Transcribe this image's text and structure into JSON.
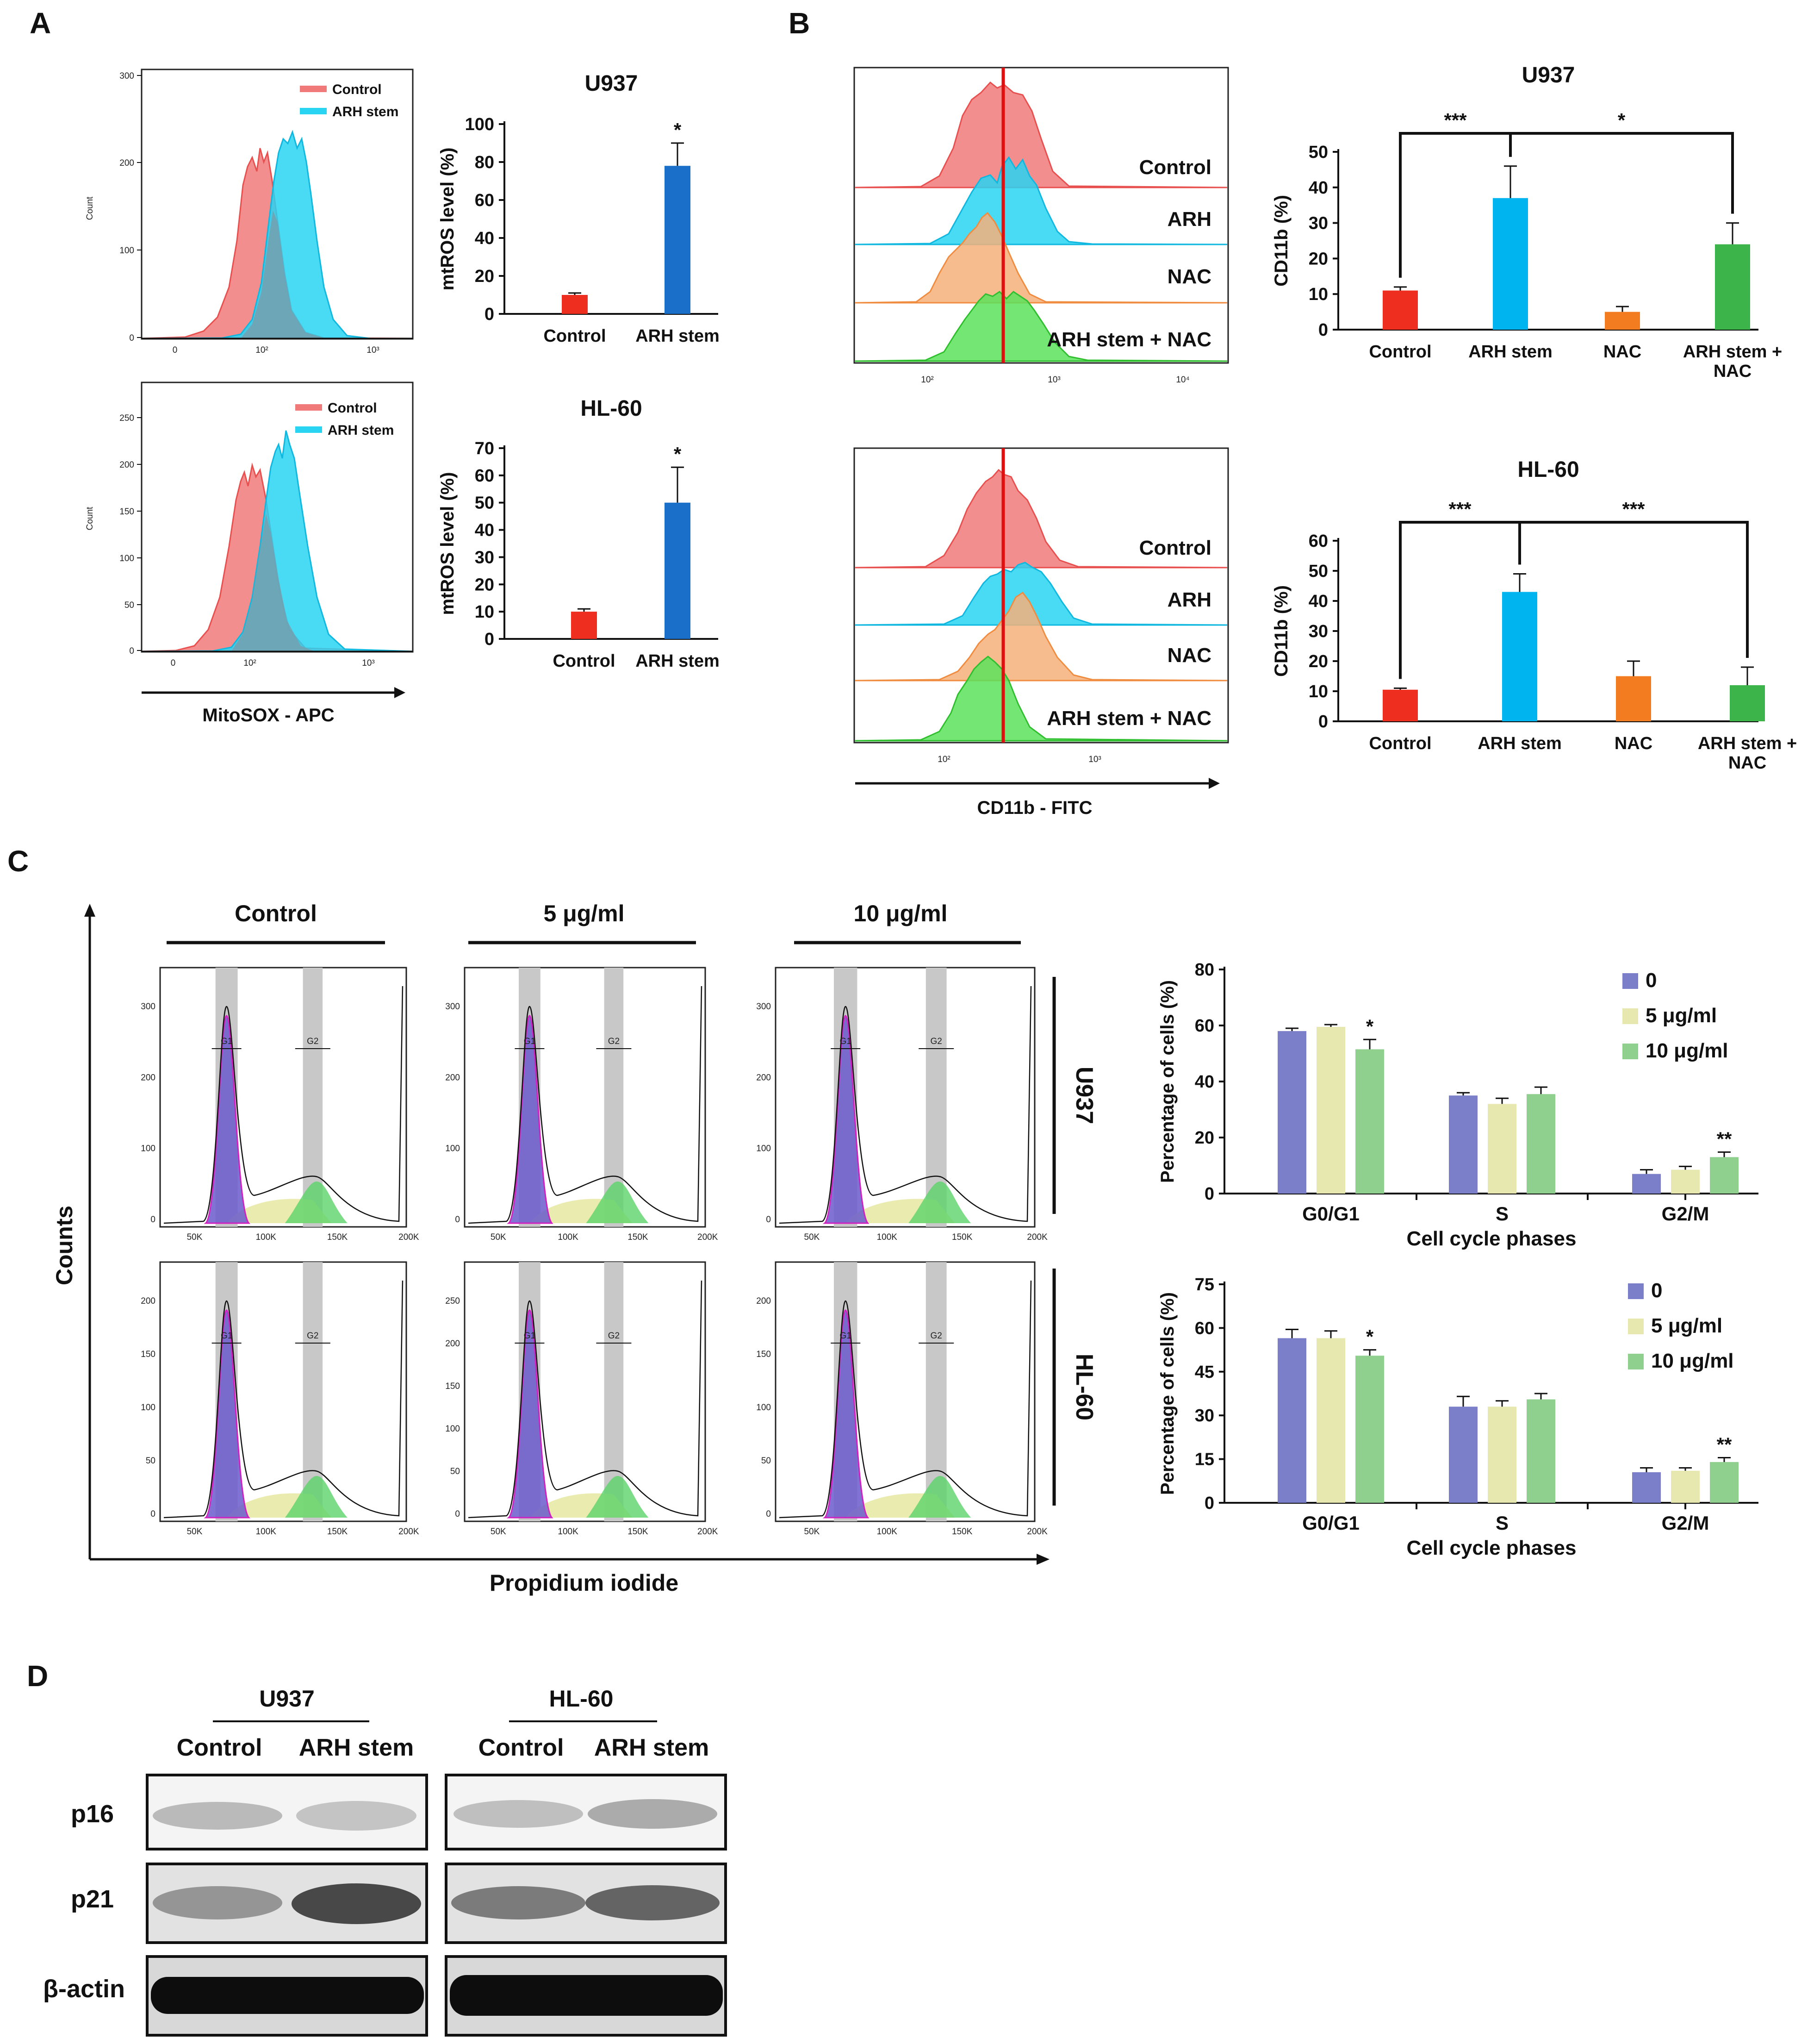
{
  "panels": {
    "A": {
      "label": "A",
      "flow_legend": [
        "Control",
        "ARH stem"
      ],
      "flow_ylabel": "Count",
      "flow_u937_yticks": [
        "300",
        "200",
        "100",
        "0"
      ],
      "flow_hl60_yticks": [
        "250",
        "200",
        "150",
        "100",
        "50",
        "0"
      ],
      "flow_xticks": [
        "0",
        "10²",
        "10³"
      ],
      "xaxis_label": "MitoSOX - APC"
    },
    "B": {
      "label": "B",
      "hist_labels": [
        "Control",
        "ARH",
        "NAC",
        "ARH stem + NAC"
      ],
      "u937_xticks": [
        "10²",
        "10³",
        "10⁴"
      ],
      "hl60_xticks": [
        "10²",
        "10³"
      ],
      "xaxis_label": "CD11b - FITC"
    },
    "C": {
      "label": "C",
      "conditions": [
        "Control",
        "5 μg/ml",
        "10 μg/ml"
      ],
      "cell_lines": [
        "U937",
        "HL-60"
      ],
      "gates": [
        "G1",
        "G2"
      ],
      "xticks": [
        "50K",
        "100K",
        "150K",
        "200K"
      ],
      "u937_yticks": [
        "300",
        "200",
        "100",
        "0"
      ],
      "hl60_yticks": [
        "200",
        "150",
        "100",
        "50",
        "0"
      ],
      "hl60_yticks_alt": [
        "250",
        "200",
        "150",
        "100",
        "50",
        "0"
      ],
      "yaxis_label": "Counts",
      "xaxis_label": "Propidium iodide"
    },
    "D": {
      "label": "D",
      "groups": [
        "U937",
        "HL-60"
      ],
      "lanes": [
        "Control",
        "ARH stem",
        "Control",
        "ARH stem"
      ],
      "proteins": [
        "p16",
        "p21",
        "β-actin"
      ]
    }
  },
  "colors": {
    "red": "#ee2e1f",
    "blue": "#1a6fc9",
    "cyan": "#00b5ef",
    "orange": "#f47c20",
    "green": "#3cb44a",
    "purple": "#7b7fc9",
    "pale": "#e6e8b0",
    "lightgreen": "#8fd08f",
    "hist_red": "#f07a7a",
    "hist_cyan": "#29d3f2",
    "hist_orange": "#f6b07a",
    "hist_green": "#5ce25c"
  },
  "chart_data": [
    {
      "id": "A-U937",
      "type": "bar",
      "title": "U937",
      "categories": [
        "Control",
        "ARH stem"
      ],
      "values": [
        10,
        78
      ],
      "errors": [
        1,
        12
      ],
      "ylabel": "mtROS level (%)",
      "ylim": [
        0,
        100
      ],
      "yticks": [
        "0",
        "20",
        "40",
        "60",
        "80",
        "100"
      ],
      "annotations": [
        "",
        "*"
      ]
    },
    {
      "id": "A-HL60",
      "type": "bar",
      "title": "HL-60",
      "categories": [
        "Control",
        "ARH stem"
      ],
      "values": [
        10,
        50
      ],
      "errors": [
        1,
        13
      ],
      "ylabel": "mtROS level (%)",
      "ylim": [
        0,
        70
      ],
      "yticks": [
        "0",
        "10",
        "20",
        "30",
        "40",
        "50",
        "60",
        "70"
      ],
      "annotations": [
        "",
        "*"
      ]
    },
    {
      "id": "B-U937",
      "type": "bar",
      "title": "U937",
      "categories": [
        "Control",
        "ARH stem",
        "NAC",
        "ARH stem +\nNAC"
      ],
      "values": [
        11,
        37,
        5,
        24
      ],
      "errors": [
        1,
        9,
        1.5,
        6
      ],
      "ylabel": "CD11b (%)",
      "ylim": [
        0,
        50
      ],
      "yticks": [
        "0",
        "10",
        "20",
        "30",
        "40",
        "50"
      ],
      "brackets": [
        {
          "from": 0,
          "to": 1,
          "label": "***"
        },
        {
          "from": 1,
          "to": 3,
          "label": "*"
        }
      ]
    },
    {
      "id": "B-HL60",
      "type": "bar",
      "title": "HL-60",
      "categories": [
        "Control",
        "ARH stem",
        "NAC",
        "ARH stem +\nNAC"
      ],
      "values": [
        10.5,
        43,
        15,
        12
      ],
      "errors": [
        0.5,
        6,
        5,
        6
      ],
      "ylabel": "CD11b (%)",
      "ylim": [
        0,
        60
      ],
      "yticks": [
        "0",
        "10",
        "20",
        "30",
        "40",
        "50",
        "60"
      ],
      "brackets": [
        {
          "from": 0,
          "to": 1,
          "label": "***"
        },
        {
          "from": 1,
          "to": 3,
          "label": "***"
        }
      ]
    },
    {
      "id": "C-U937",
      "type": "bar",
      "categories": [
        "G0/G1",
        "S",
        "G2/M"
      ],
      "series": [
        {
          "name": "0",
          "values": [
            58,
            35,
            7
          ],
          "errors": [
            1,
            1,
            1.5
          ]
        },
        {
          "name": "5 μg/ml",
          "values": [
            59.5,
            32,
            8.5
          ],
          "errors": [
            0.8,
            2,
            1.2
          ]
        },
        {
          "name": "10 μg/ml",
          "values": [
            51.5,
            35.5,
            13
          ],
          "errors": [
            3.5,
            2.5,
            1.8
          ]
        }
      ],
      "xlabel": "Cell cycle phases",
      "ylabel": "Percentage of cells (%)",
      "ylim": [
        0,
        80
      ],
      "yticks": [
        "0",
        "20",
        "40",
        "60",
        "80"
      ],
      "annotations": [
        [
          2,
          0,
          "*"
        ],
        [
          2,
          2,
          "**"
        ]
      ]
    },
    {
      "id": "C-HL60",
      "type": "bar",
      "categories": [
        "G0/G1",
        "S",
        "G2/M"
      ],
      "series": [
        {
          "name": "0",
          "values": [
            56.5,
            33,
            10.5
          ],
          "errors": [
            3,
            3.5,
            1.5
          ]
        },
        {
          "name": "5 μg/ml",
          "values": [
            56.5,
            33,
            11
          ],
          "errors": [
            2.5,
            2,
            1
          ]
        },
        {
          "name": "10 μg/ml",
          "values": [
            50.5,
            35.5,
            14
          ],
          "errors": [
            2,
            2,
            1.5
          ]
        }
      ],
      "xlabel": "Cell cycle phases",
      "ylabel": "Percentage of cells (%)",
      "ylim": [
        0,
        75
      ],
      "yticks": [
        "0",
        "15",
        "30",
        "45",
        "60",
        "75"
      ],
      "annotations": [
        [
          2,
          0,
          "*"
        ],
        [
          2,
          2,
          "**"
        ]
      ]
    }
  ]
}
